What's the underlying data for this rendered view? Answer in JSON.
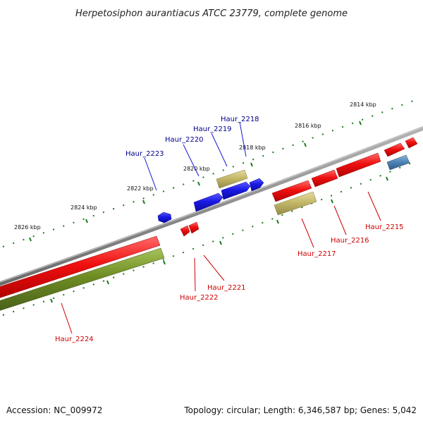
{
  "title": "Herpetosiphon aurantiacus ATCC 23779, complete genome",
  "footer": {
    "accession": "Accession: NC_009972",
    "topology": "Topology: circular; Length: 6,346,587 bp; Genes: 5,042"
  },
  "colors": {
    "backbone": "#8a8a8a",
    "forward_cds": "#1f1fe0",
    "reverse_cds": "#ee1111",
    "rna_khaki": "#c2b86a",
    "rna_olive": "#6b8a22",
    "steelblue": "#4f86b8",
    "forward_label": "#00008b",
    "reverse_label": "#cc0000",
    "ticks": "#1a7a1a"
  },
  "ticks_outer": [
    "2814 kbp",
    "2816 kbp",
    "2818 kbp",
    "2820 kbp",
    "2822 kbp",
    "2824 kbp",
    "2826 kbp"
  ],
  "genes_forward": [
    "Haur_2223",
    "Haur_2220",
    "Haur_2219",
    "Haur_2218"
  ],
  "genes_reverse": [
    "Haur_2224",
    "Haur_2222",
    "Haur_2221",
    "Haur_2217",
    "Haur_2216",
    "Haur_2215"
  ]
}
